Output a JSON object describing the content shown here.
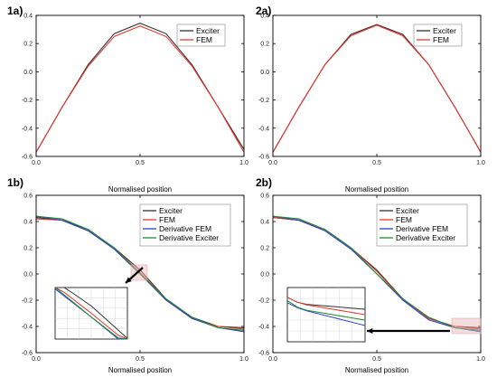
{
  "chart_data": [
    {
      "id": "1a",
      "type": "line",
      "panel_label": "1a)",
      "xlabel": "Normalised position",
      "ylabel": "",
      "xlim": [
        0,
        1
      ],
      "ylim": [
        -0.6,
        0.4
      ],
      "xticks": [
        "0.0",
        "0.5",
        "1.0"
      ],
      "yticks": [
        "-0.6",
        "-0.4",
        "-0.2",
        "0.0",
        "0.2",
        "0.4"
      ],
      "legend_position": "top-right",
      "series": [
        {
          "name": "Exciter",
          "color": "#333333",
          "x": [
            0,
            0.125,
            0.25,
            0.375,
            0.5,
            0.625,
            0.75,
            0.875,
            1.0
          ],
          "y": [
            -0.57,
            -0.25,
            0.05,
            0.27,
            0.345,
            0.27,
            0.05,
            -0.25,
            -0.55
          ]
        },
        {
          "name": "FEM",
          "color": "#e8382e",
          "x": [
            0,
            0.125,
            0.25,
            0.375,
            0.5,
            0.625,
            0.75,
            0.875,
            1.0
          ],
          "y": [
            -0.57,
            -0.25,
            0.04,
            0.25,
            0.325,
            0.25,
            0.04,
            -0.25,
            -0.57
          ]
        }
      ]
    },
    {
      "id": "2a",
      "type": "line",
      "panel_label": "2a)",
      "xlabel": "Normalised position",
      "ylabel": "",
      "xlim": [
        0,
        1
      ],
      "ylim": [
        -0.6,
        0.4
      ],
      "xticks": [
        "0.0",
        "0.5",
        "1.0"
      ],
      "yticks": [
        "-0.6",
        "-0.4",
        "-0.2",
        "0.0",
        "0.2",
        "0.4"
      ],
      "legend_position": "top-right",
      "series": [
        {
          "name": "Exciter",
          "color": "#333333",
          "x": [
            0,
            0.125,
            0.25,
            0.375,
            0.5,
            0.625,
            0.75,
            0.875,
            1.0
          ],
          "y": [
            -0.57,
            -0.25,
            0.05,
            0.265,
            0.335,
            0.265,
            0.05,
            -0.25,
            -0.57
          ]
        },
        {
          "name": "FEM",
          "color": "#e8382e",
          "x": [
            0,
            0.125,
            0.25,
            0.375,
            0.5,
            0.625,
            0.75,
            0.875,
            1.0
          ],
          "y": [
            -0.57,
            -0.25,
            0.05,
            0.255,
            0.33,
            0.255,
            0.05,
            -0.25,
            -0.57
          ]
        }
      ]
    },
    {
      "id": "1b",
      "type": "line",
      "panel_label": "1b)",
      "xlabel": "Normalised position",
      "ylabel": "",
      "xlim": [
        0,
        1
      ],
      "ylim": [
        -0.6,
        0.6
      ],
      "xticks": [
        "0.0",
        "0.5",
        "1.0"
      ],
      "yticks": [
        "-0.6",
        "-0.4",
        "-0.2",
        "0.0",
        "0.2",
        "0.4",
        "0.6"
      ],
      "legend_position": "top-right",
      "series": [
        {
          "name": "Exciter",
          "color": "#333333",
          "x": [
            0,
            0.125,
            0.25,
            0.375,
            0.5,
            0.625,
            0.75,
            0.875,
            1.0
          ],
          "y": [
            0.43,
            0.41,
            0.34,
            0.2,
            0.03,
            -0.19,
            -0.33,
            -0.4,
            -0.41
          ]
        },
        {
          "name": "FEM",
          "color": "#e8382e",
          "x": [
            0,
            0.125,
            0.25,
            0.375,
            0.5,
            0.625,
            0.75,
            0.875,
            1.0
          ],
          "y": [
            0.42,
            0.41,
            0.33,
            0.2,
            0.01,
            -0.19,
            -0.34,
            -0.4,
            -0.42
          ]
        },
        {
          "name": "Derivative FEM",
          "color": "#2a3fd0",
          "x": [
            0,
            0.125,
            0.25,
            0.375,
            0.5,
            0.625,
            0.75,
            0.875,
            1.0
          ],
          "y": [
            0.44,
            0.41,
            0.33,
            0.19,
            0.0,
            -0.2,
            -0.34,
            -0.41,
            -0.44
          ]
        },
        {
          "name": "Derivative Exciter",
          "color": "#1c8a2e",
          "x": [
            0,
            0.125,
            0.25,
            0.375,
            0.5,
            0.625,
            0.75,
            0.875,
            1.0
          ],
          "y": [
            0.44,
            0.42,
            0.34,
            0.2,
            0.0,
            -0.19,
            -0.33,
            -0.41,
            -0.43
          ]
        }
      ]
    },
    {
      "id": "2b",
      "type": "line",
      "panel_label": "2b)",
      "xlabel": "Normalised position",
      "ylabel": "",
      "xlim": [
        0,
        1
      ],
      "ylim": [
        -0.6,
        0.6
      ],
      "xticks": [
        "0.0",
        "0.5",
        "1.0"
      ],
      "yticks": [
        "-0.6",
        "-0.4",
        "-0.2",
        "0.0",
        "0.2",
        "0.4",
        "0.6"
      ],
      "legend_position": "top-right",
      "series": [
        {
          "name": "Exciter",
          "color": "#333333",
          "x": [
            0,
            0.125,
            0.25,
            0.375,
            0.5,
            0.625,
            0.75,
            0.875,
            1.0
          ],
          "y": [
            0.43,
            0.41,
            0.34,
            0.2,
            0.03,
            -0.19,
            -0.34,
            -0.4,
            -0.41
          ]
        },
        {
          "name": "FEM",
          "color": "#e8382e",
          "x": [
            0,
            0.125,
            0.25,
            0.375,
            0.5,
            0.625,
            0.75,
            0.875,
            1.0
          ],
          "y": [
            0.43,
            0.41,
            0.34,
            0.2,
            0.02,
            -0.19,
            -0.34,
            -0.4,
            -0.42
          ]
        },
        {
          "name": "Derivative FEM",
          "color": "#2a3fd0",
          "x": [
            0,
            0.125,
            0.25,
            0.375,
            0.5,
            0.625,
            0.75,
            0.875,
            1.0
          ],
          "y": [
            0.44,
            0.41,
            0.33,
            0.19,
            0.0,
            -0.2,
            -0.35,
            -0.41,
            -0.44
          ]
        },
        {
          "name": "Derivative Exciter",
          "color": "#1c8a2e",
          "x": [
            0,
            0.125,
            0.25,
            0.375,
            0.5,
            0.625,
            0.75,
            0.875,
            1.0
          ],
          "y": [
            0.44,
            0.42,
            0.34,
            0.2,
            0.0,
            -0.19,
            -0.33,
            -0.41,
            -0.43
          ]
        }
      ]
    }
  ]
}
